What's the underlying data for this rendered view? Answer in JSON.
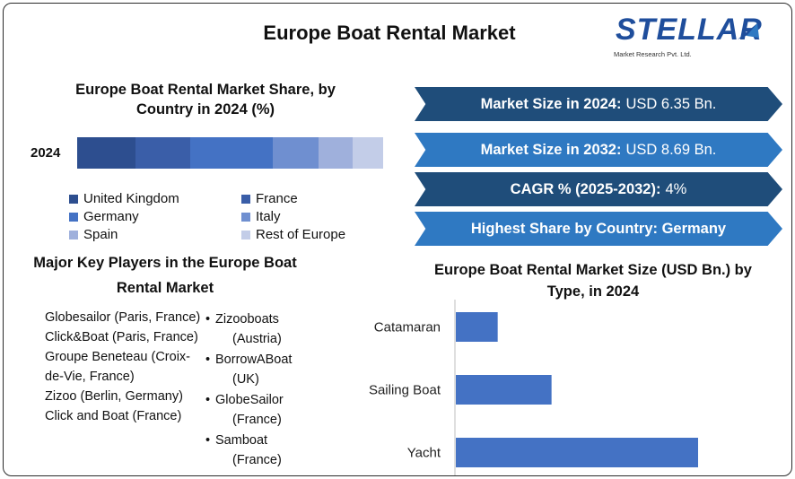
{
  "header": {
    "title": "Europe Boat Rental Market",
    "logo_word": "STELLAR",
    "logo_sub": "Market Research Pvt. Ltd."
  },
  "share_panel": {
    "title": "Europe Boat Rental Market Share, by Country in 2024 (%)"
  },
  "key_players": {
    "title": "Major Key Players in the Europe Boat Rental Market",
    "column1": [
      "Globesailor (Paris, France)",
      "Click&Boat (Paris, France)",
      "Groupe Beneteau (Croix-de-Vie, France)",
      "Zizoo (Berlin, Germany)",
      "Click and Boat (France)"
    ],
    "column2": [
      {
        "name": "Zizooboats",
        "location": "(Austria)"
      },
      {
        "name": "BorrowABoat",
        "location": "(UK)"
      },
      {
        "name": "GlobeSailor",
        "location": "(France)"
      },
      {
        "name": "Samboat",
        "location": "(France)"
      }
    ],
    "bullet": "•"
  },
  "banners": [
    {
      "label": "Market Size in 2024:",
      "value": "USD 6.35 Bn.",
      "color": "#1f4d7a"
    },
    {
      "label": "Market Size in 2032:",
      "value": "USD 8.69 Bn.",
      "color": "#2f79c2"
    },
    {
      "label": "CAGR % (2025-2032):",
      "value": "4%",
      "color": "#1f4d7a"
    },
    {
      "label": "Highest Share by Country: Germany",
      "value": "",
      "color": "#2f79c2"
    }
  ],
  "type_panel": {
    "title": "Europe Boat Rental Market Size (USD Bn.) by Type, in 2024"
  },
  "chart_data": [
    {
      "type": "bar",
      "orientation": "horizontal-stacked",
      "categories": [
        "2024"
      ],
      "series": [
        {
          "name": "United Kingdom",
          "values": [
            19
          ],
          "color": "#2d4e8f"
        },
        {
          "name": "France",
          "values": [
            18
          ],
          "color": "#3a5ea8"
        },
        {
          "name": "Germany",
          "values": [
            27
          ],
          "color": "#4472c4"
        },
        {
          "name": "Italy",
          "values": [
            15
          ],
          "color": "#6f8fd0"
        },
        {
          "name": "Spain",
          "values": [
            11
          ],
          "color": "#9fb0dc"
        },
        {
          "name": "Rest of Europe",
          "values": [
            10
          ],
          "color": "#c3cde8"
        }
      ],
      "xlim": [
        0,
        100
      ],
      "grid": false,
      "legend": "bottom"
    },
    {
      "type": "bar",
      "orientation": "horizontal",
      "categories": [
        "Catamaran",
        "Sailing Boat",
        "Yacht"
      ],
      "values": [
        0.7,
        1.6,
        4.05
      ],
      "color": "#4472c4",
      "xlim": [
        0,
        4.5
      ],
      "grid": false
    }
  ]
}
